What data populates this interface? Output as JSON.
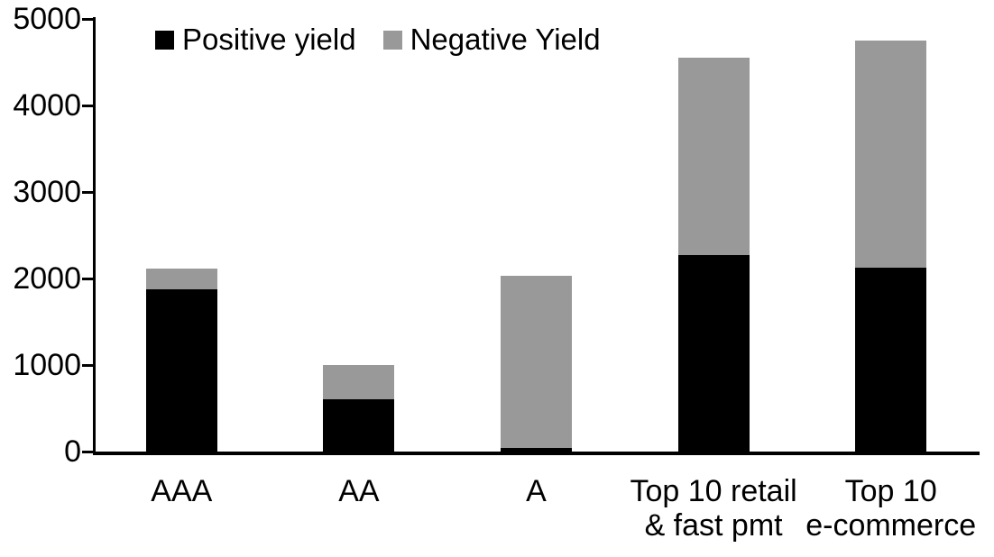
{
  "chart_data": {
    "type": "bar",
    "stacked": true,
    "title": "",
    "categories": [
      "AAA",
      "AA",
      "A",
      "Top 10 retail\n& fast pmt",
      "Top 10\ne-commerce"
    ],
    "series": [
      {
        "name": "Positive yield",
        "color": "#000000",
        "values": [
          1880,
          600,
          40,
          2270,
          2130
        ]
      },
      {
        "name": "Negative Yield",
        "color": "#999999",
        "values": [
          230,
          400,
          1990,
          2280,
          2620
        ]
      }
    ],
    "totals": [
      2110,
      1000,
      2030,
      4550,
      4750
    ],
    "xlabel": "",
    "ylabel": "",
    "y_axis": {
      "min": 0,
      "max": 5000,
      "tick_interval": 1000,
      "ticks": [
        0,
        1000,
        2000,
        3000,
        4000,
        5000
      ]
    },
    "grid": false,
    "legend_position": "top",
    "background_color": "#ffffff",
    "axis_color": "#000000",
    "text_color": "#000000"
  }
}
